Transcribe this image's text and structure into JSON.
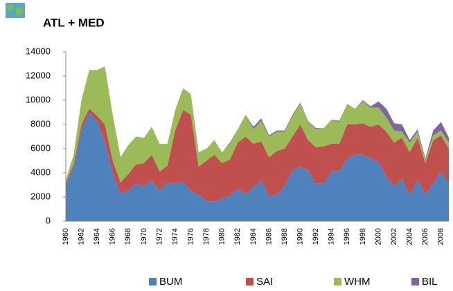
{
  "chart_data": {
    "type": "stacked_area",
    "title": "ATL + MED",
    "categories": [
      "1960",
      null,
      "1962",
      null,
      "1964",
      null,
      "1966",
      null,
      "1968",
      null,
      "1970",
      null,
      "1972",
      null,
      "1974",
      null,
      "1976",
      null,
      "1978",
      null,
      "1980",
      null,
      "1982",
      null,
      "1984",
      null,
      "1986",
      null,
      "1988",
      null,
      "1990",
      null,
      "1992",
      null,
      "1994",
      null,
      "1996",
      null,
      "1998",
      null,
      "2000",
      null,
      "2002",
      null,
      "2004",
      null,
      "2006",
      null,
      "2008",
      null
    ],
    "series": [
      {
        "name": "BUM",
        "color": "#4f81bd",
        "values": [
          3000,
          4500,
          7500,
          9000,
          8300,
          6500,
          4000,
          2300,
          2500,
          3100,
          2900,
          3400,
          2500,
          3200,
          3100,
          3300,
          2500,
          2200,
          1700,
          1600,
          1900,
          2100,
          2700,
          2200,
          2800,
          3400,
          2100,
          2200,
          2900,
          4200,
          4500,
          4200,
          3100,
          3100,
          4100,
          4200,
          5200,
          5500,
          5500,
          5200,
          4900,
          3700,
          2900,
          3500,
          2200,
          3400,
          2200,
          3100,
          4100,
          3100
        ]
      },
      {
        "name": "SAI",
        "color": "#c0504d",
        "values": [
          200,
          200,
          500,
          300,
          400,
          1500,
          1000,
          900,
          1400,
          1600,
          1900,
          2100,
          1600,
          1400,
          4400,
          5900,
          6300,
          2300,
          3300,
          3900,
          2900,
          3000,
          3800,
          4800,
          3600,
          3200,
          3200,
          3600,
          3100,
          2800,
          3500,
          2500,
          3000,
          3100,
          2300,
          2200,
          2800,
          2500,
          2600,
          2600,
          3100,
          3700,
          3600,
          3400,
          3500,
          3500,
          2600,
          3600,
          3000,
          2900
        ]
      },
      {
        "name": "WHM",
        "color": "#9bbb59",
        "values": [
          200,
          800,
          2000,
          3200,
          3800,
          4800,
          3800,
          2100,
          2400,
          2300,
          2100,
          2300,
          2300,
          1800,
          1700,
          1800,
          1700,
          1200,
          1000,
          1200,
          900,
          1300,
          1100,
          1800,
          1200,
          1700,
          1700,
          1600,
          1400,
          1700,
          1700,
          1600,
          1500,
          1500,
          2000,
          1800,
          1700,
          1300,
          1800,
          1600,
          1400,
          1200,
          1000,
          500,
          800,
          500,
          300,
          400,
          400,
          500
        ]
      },
      {
        "name": "BIL",
        "color": "#8064a2",
        "values": [
          0,
          0,
          0,
          0,
          0,
          0,
          0,
          0,
          0,
          0,
          0,
          0,
          0,
          0,
          0,
          0,
          0,
          0,
          0,
          0,
          0,
          100,
          0,
          0,
          200,
          200,
          100,
          100,
          100,
          100,
          100,
          0,
          100,
          0,
          0,
          100,
          0,
          0,
          100,
          100,
          500,
          700,
          600,
          600,
          200,
          200,
          100,
          400,
          700,
          400
        ]
      }
    ],
    "ylim": [
      0,
      14000
    ],
    "yticks": [
      0,
      2000,
      4000,
      6000,
      8000,
      10000,
      12000,
      14000
    ],
    "grid": false,
    "legend": "bottom"
  }
}
